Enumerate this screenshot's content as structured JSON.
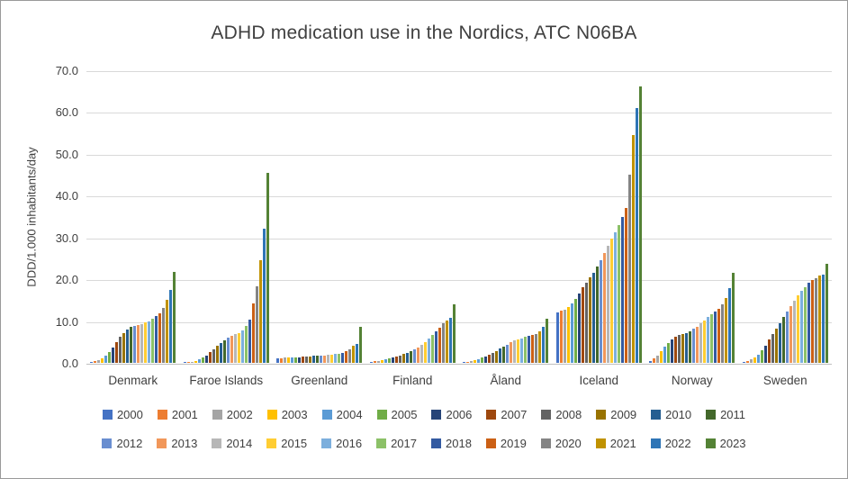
{
  "chart": {
    "title": "ADHD medication use in the Nordics, ATC N06BA",
    "ylabel": "DDD/1.000 inhabitants/day"
  },
  "chart_data": {
    "type": "bar",
    "title": "ADHD medication use in the Nordics, ATC N06BA",
    "xlabel": "",
    "ylabel": "DDD/1.000 inhabitants/day",
    "ylim": [
      0,
      70
    ],
    "ytick_step": 10,
    "ytick_labels": [
      "0.0",
      "10.0",
      "20.0",
      "30.0",
      "40.0",
      "50.0",
      "60.0",
      "70.0"
    ],
    "grid": true,
    "legend_position": "bottom",
    "categories": [
      "Denmark",
      "Faroe Islands",
      "Greenland",
      "Finland",
      "Åland",
      "Iceland",
      "Norway",
      "Sweden"
    ],
    "series": [
      {
        "name": "2000",
        "color": "#4472C4",
        "values": [
          0.2,
          0.1,
          1.0,
          0.3,
          0.1,
          12.0,
          0.5,
          0.2
        ]
      },
      {
        "name": "2001",
        "color": "#ED7D31",
        "values": [
          0.4,
          0.2,
          1.1,
          0.4,
          0.2,
          12.4,
          1.0,
          0.4
        ]
      },
      {
        "name": "2002",
        "color": "#A5A5A5",
        "values": [
          0.7,
          0.3,
          1.2,
          0.5,
          0.4,
          12.8,
          1.8,
          0.8
        ]
      },
      {
        "name": "2003",
        "color": "#FFC000",
        "values": [
          1.1,
          0.5,
          1.2,
          0.7,
          0.6,
          13.4,
          2.8,
          1.3
        ]
      },
      {
        "name": "2004",
        "color": "#5B9BD5",
        "values": [
          1.7,
          0.8,
          1.3,
          0.9,
          0.9,
          14.2,
          3.8,
          2.0
        ]
      },
      {
        "name": "2005",
        "color": "#70AD47",
        "values": [
          2.5,
          1.2,
          1.3,
          1.1,
          1.2,
          15.2,
          4.8,
          3.0
        ]
      },
      {
        "name": "2006",
        "color": "#264478",
        "values": [
          3.7,
          1.8,
          1.4,
          1.3,
          1.6,
          16.6,
          5.6,
          4.2
        ]
      },
      {
        "name": "2007",
        "color": "#9E480E",
        "values": [
          5.0,
          2.5,
          1.5,
          1.5,
          2.0,
          18.0,
          6.2,
          5.5
        ]
      },
      {
        "name": "2008",
        "color": "#636363",
        "values": [
          6.2,
          3.2,
          1.5,
          1.8,
          2.4,
          19.2,
          6.6,
          6.8
        ]
      },
      {
        "name": "2009",
        "color": "#997300",
        "values": [
          7.2,
          4.0,
          1.6,
          2.1,
          2.9,
          20.4,
          6.9,
          8.1
        ]
      },
      {
        "name": "2010",
        "color": "#255E91",
        "values": [
          8.0,
          4.8,
          1.7,
          2.4,
          3.4,
          21.6,
          7.2,
          9.5
        ]
      },
      {
        "name": "2011",
        "color": "#43682B",
        "values": [
          8.6,
          5.4,
          1.7,
          2.8,
          3.9,
          23.0,
          7.6,
          10.9
        ]
      },
      {
        "name": "2012",
        "color": "#698ED0",
        "values": [
          8.9,
          6.0,
          1.8,
          3.2,
          4.4,
          24.6,
          8.1,
          12.3
        ]
      },
      {
        "name": "2013",
        "color": "#F1975A",
        "values": [
          9.1,
          6.4,
          1.8,
          3.7,
          4.9,
          26.2,
          8.7,
          13.6
        ]
      },
      {
        "name": "2014",
        "color": "#B7B7B7",
        "values": [
          9.3,
          6.8,
          1.9,
          4.3,
          5.3,
          28.0,
          9.4,
          14.9
        ]
      },
      {
        "name": "2015",
        "color": "#FFCD33",
        "values": [
          9.6,
          7.2,
          2.0,
          5.0,
          5.6,
          29.8,
          10.1,
          16.1
        ]
      },
      {
        "name": "2016",
        "color": "#7CAFDD",
        "values": [
          10.0,
          7.8,
          2.1,
          5.8,
          5.9,
          31.3,
          10.9,
          17.2
        ]
      },
      {
        "name": "2017",
        "color": "#8CC168",
        "values": [
          10.5,
          8.8,
          2.2,
          6.6,
          6.2,
          33.0,
          11.6,
          18.2
        ]
      },
      {
        "name": "2018",
        "color": "#335AA1",
        "values": [
          11.1,
          10.4,
          2.4,
          7.5,
          6.4,
          35.0,
          12.2,
          19.1
        ]
      },
      {
        "name": "2019",
        "color": "#CB6015",
        "values": [
          11.9,
          14.3,
          2.7,
          8.5,
          6.6,
          37.0,
          13.0,
          19.8
        ]
      },
      {
        "name": "2020",
        "color": "#848484",
        "values": [
          13.1,
          18.4,
          3.2,
          9.5,
          7.0,
          45.0,
          14.0,
          20.3
        ]
      },
      {
        "name": "2021",
        "color": "#C09200",
        "values": [
          15.1,
          24.5,
          4.0,
          10.1,
          7.6,
          54.5,
          15.5,
          20.9
        ]
      },
      {
        "name": "2022",
        "color": "#2E75B6",
        "values": [
          17.4,
          32.2,
          4.6,
          10.8,
          8.7,
          61.0,
          17.8,
          21.2
        ]
      },
      {
        "name": "2023",
        "color": "#548235",
        "values": [
          21.8,
          45.5,
          8.7,
          14.0,
          10.5,
          66.2,
          21.5,
          23.8
        ]
      }
    ]
  }
}
